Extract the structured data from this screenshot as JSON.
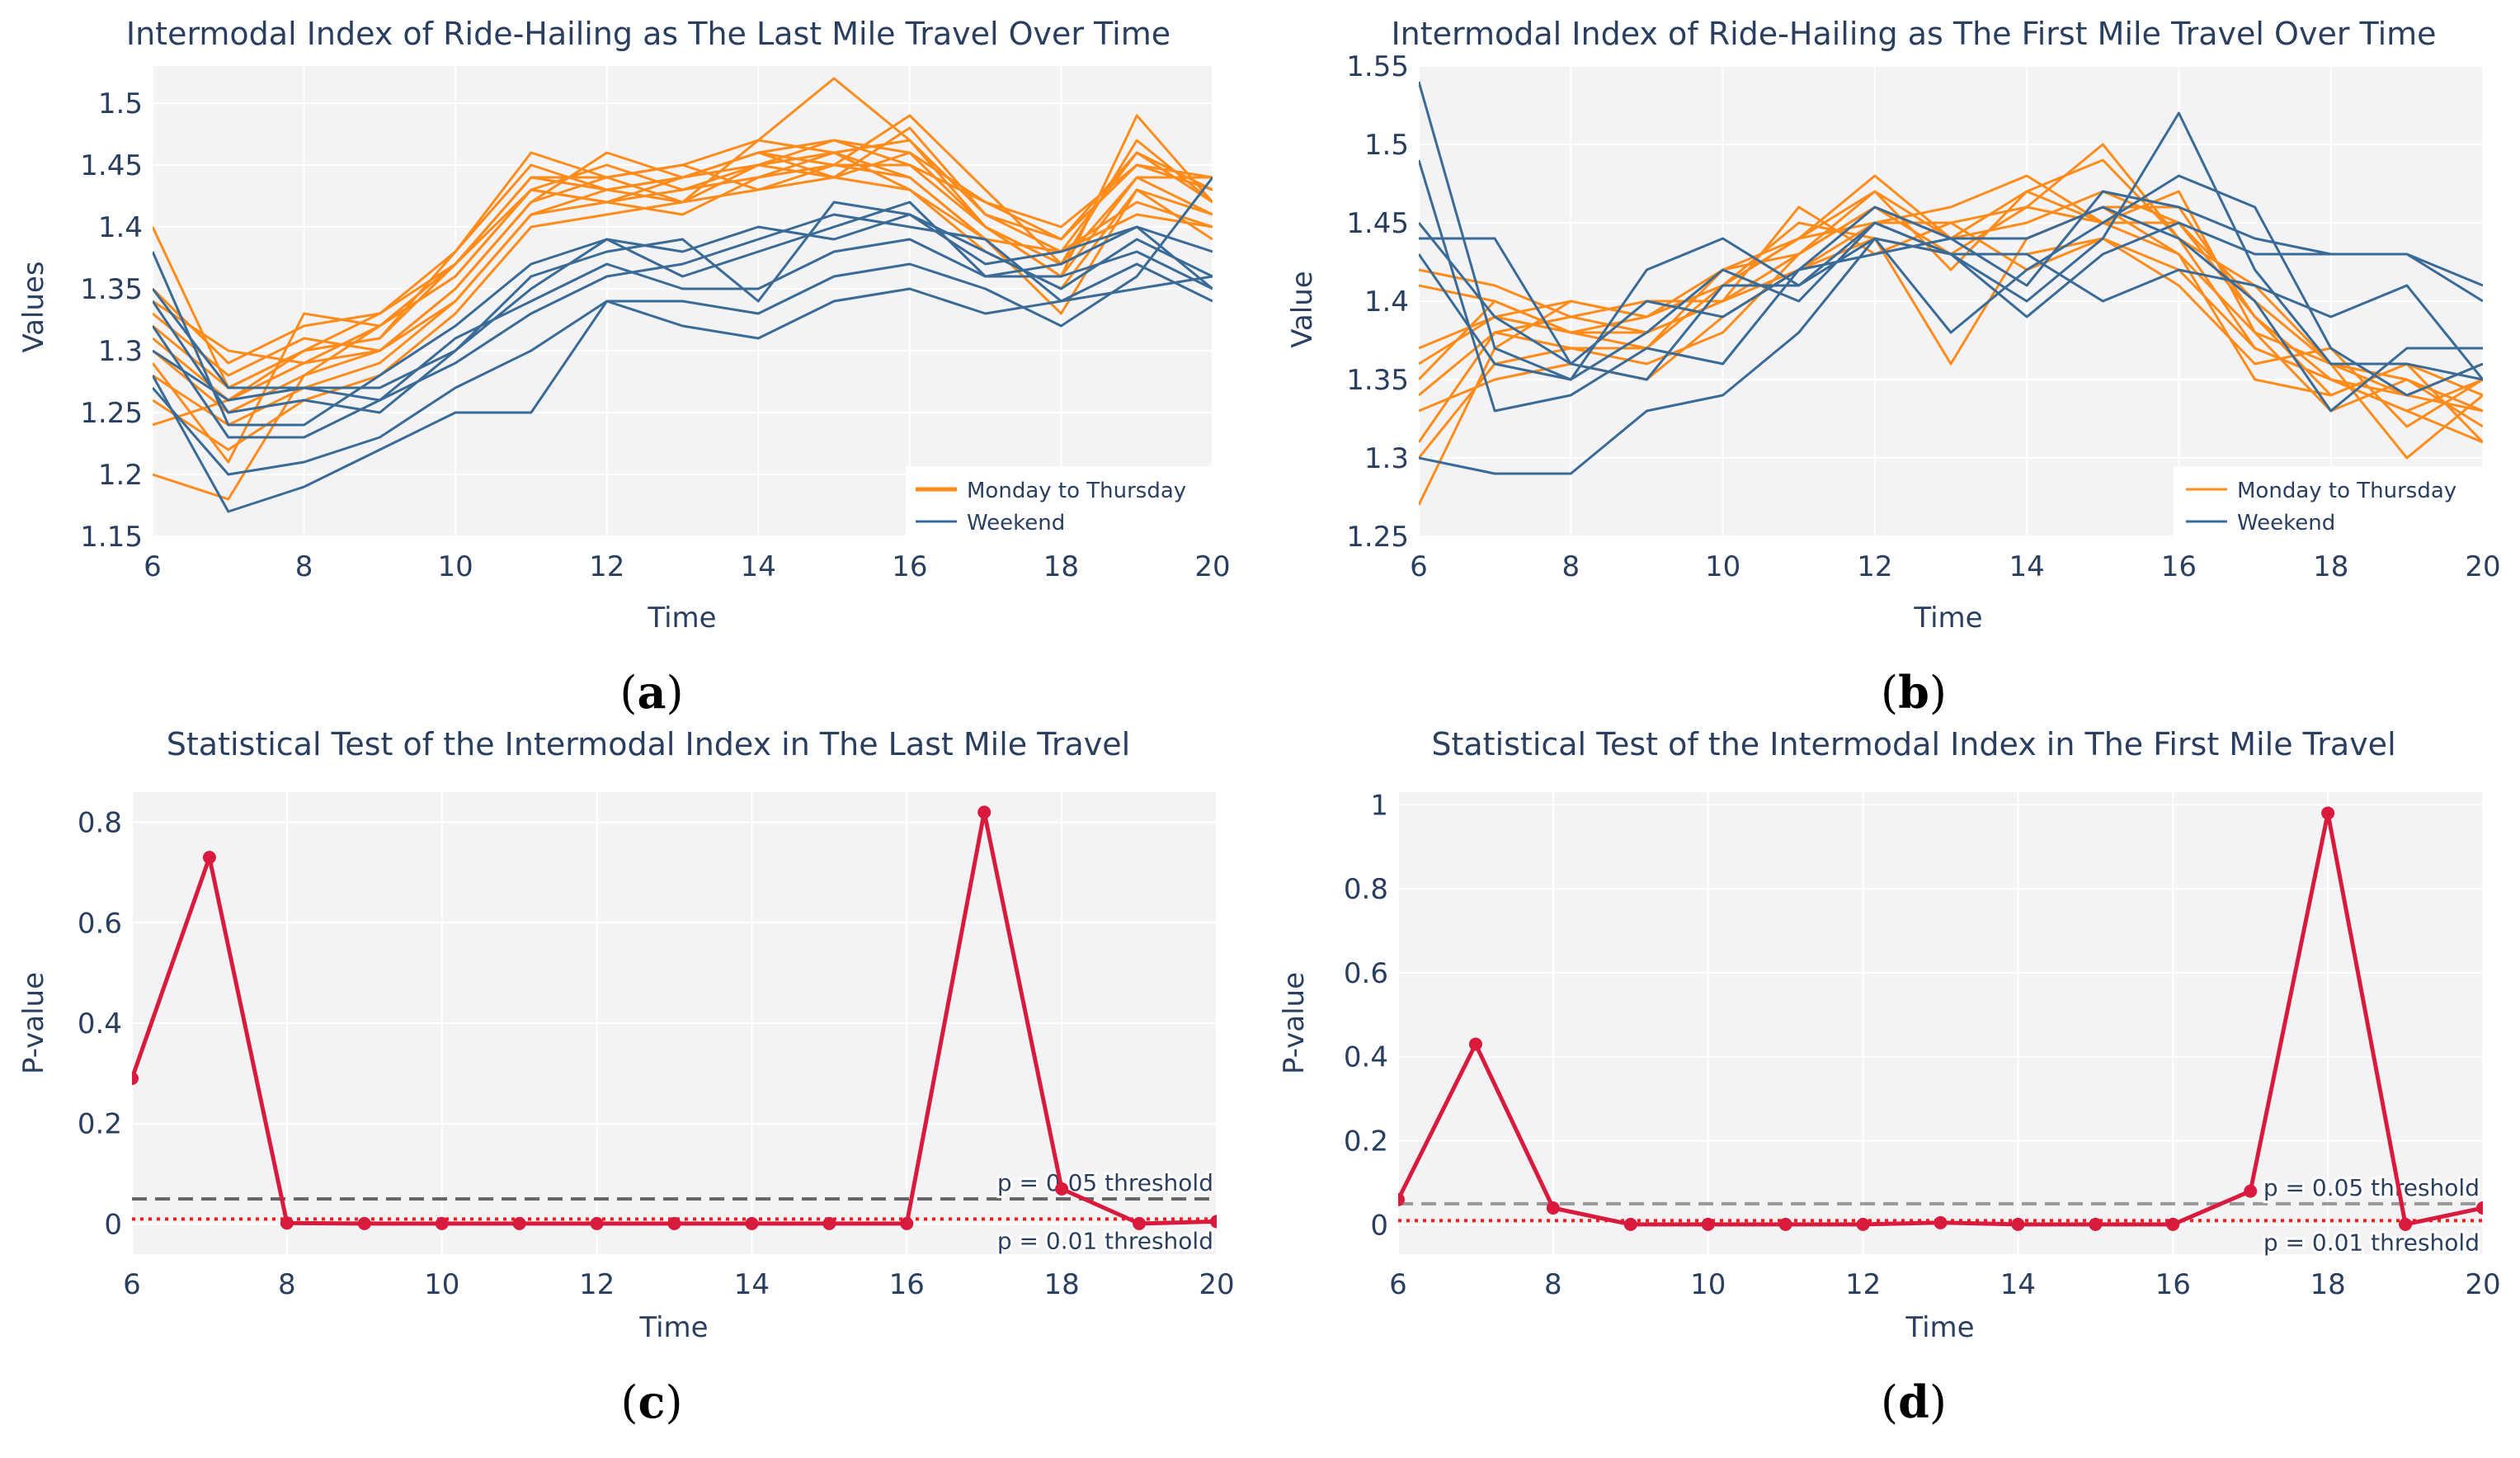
{
  "chart_data": [
    {
      "type": "line",
      "panel_label": "a",
      "title": "Intermodal Index of Ride-Hailing as The Last Mile Travel Over Time",
      "xlabel": "Time",
      "ylabel": "Values",
      "xlim": [
        6,
        20
      ],
      "ylim": [
        1.15,
        1.53
      ],
      "xticks": [
        6,
        8,
        10,
        12,
        14,
        16,
        18,
        20
      ],
      "yticks": [
        1.15,
        1.2,
        1.25,
        1.3,
        1.35,
        1.4,
        1.45,
        1.5
      ],
      "grid": true,
      "x": [
        6,
        7,
        8,
        9,
        10,
        11,
        12,
        13,
        14,
        15,
        16,
        17,
        18,
        19,
        20
      ],
      "legend": [
        {
          "name": "Monday to Thursday",
          "color": "#ff8c1a"
        },
        {
          "name": "Weekend",
          "color": "#3a6a96"
        }
      ],
      "legend_position": "bottom-right",
      "series": [
        {
          "name": "Monday to Thursday",
          "group": 0,
          "values": [
            1.3,
            1.25,
            1.28,
            1.3,
            1.35,
            1.42,
            1.44,
            1.42,
            1.45,
            1.44,
            1.46,
            1.4,
            1.37,
            1.44,
            1.41
          ]
        },
        {
          "name": "Monday to Thursday",
          "group": 0,
          "values": [
            1.32,
            1.27,
            1.3,
            1.31,
            1.37,
            1.44,
            1.43,
            1.44,
            1.46,
            1.47,
            1.45,
            1.42,
            1.39,
            1.46,
            1.43
          ]
        },
        {
          "name": "Monday to Thursday",
          "group": 0,
          "values": [
            1.28,
            1.24,
            1.27,
            1.29,
            1.34,
            1.41,
            1.42,
            1.43,
            1.44,
            1.45,
            1.44,
            1.39,
            1.38,
            1.42,
            1.4
          ]
        },
        {
          "name": "Monday to Thursday",
          "group": 0,
          "values": [
            1.35,
            1.29,
            1.32,
            1.33,
            1.38,
            1.46,
            1.44,
            1.45,
            1.47,
            1.52,
            1.47,
            1.4,
            1.36,
            1.49,
            1.42
          ]
        },
        {
          "name": "Monday to Thursday",
          "group": 0,
          "values": [
            1.26,
            1.22,
            1.26,
            1.28,
            1.33,
            1.4,
            1.41,
            1.42,
            1.43,
            1.44,
            1.48,
            1.41,
            1.39,
            1.45,
            1.44
          ]
        },
        {
          "name": "Monday to Thursday",
          "group": 0,
          "values": [
            1.31,
            1.26,
            1.29,
            1.32,
            1.36,
            1.43,
            1.45,
            1.43,
            1.45,
            1.46,
            1.43,
            1.38,
            1.35,
            1.43,
            1.41
          ]
        },
        {
          "name": "Monday to Thursday",
          "group": 0,
          "values": [
            1.33,
            1.28,
            1.31,
            1.3,
            1.35,
            1.42,
            1.46,
            1.44,
            1.46,
            1.45,
            1.49,
            1.43,
            1.37,
            1.47,
            1.42
          ]
        },
        {
          "name": "Monday to Thursday",
          "group": 0,
          "values": [
            1.29,
            1.21,
            1.33,
            1.32,
            1.36,
            1.43,
            1.42,
            1.41,
            1.44,
            1.46,
            1.44,
            1.39,
            1.38,
            1.41,
            1.4
          ]
        },
        {
          "name": "Monday to Thursday",
          "group": 0,
          "values": [
            1.4,
            1.27,
            1.3,
            1.31,
            1.38,
            1.45,
            1.43,
            1.44,
            1.45,
            1.47,
            1.46,
            1.42,
            1.4,
            1.45,
            1.43
          ]
        },
        {
          "name": "Monday to Thursday",
          "group": 0,
          "values": [
            1.24,
            1.26,
            1.3,
            1.33,
            1.37,
            1.44,
            1.44,
            1.45,
            1.43,
            1.45,
            1.45,
            1.4,
            1.36,
            1.44,
            1.44
          ]
        },
        {
          "name": "Monday to Thursday",
          "group": 0,
          "values": [
            1.34,
            1.3,
            1.29,
            1.3,
            1.34,
            1.41,
            1.43,
            1.42,
            1.47,
            1.46,
            1.47,
            1.41,
            1.38,
            1.46,
            1.42
          ]
        },
        {
          "name": "Monday to Thursday",
          "group": 0,
          "values": [
            1.2,
            1.18,
            1.28,
            1.32,
            1.37,
            1.43,
            1.42,
            1.44,
            1.46,
            1.44,
            1.43,
            1.39,
            1.33,
            1.43,
            1.39
          ]
        },
        {
          "name": "Weekend",
          "group": 1,
          "values": [
            1.38,
            1.24,
            1.24,
            1.28,
            1.32,
            1.37,
            1.39,
            1.38,
            1.4,
            1.39,
            1.41,
            1.37,
            1.38,
            1.4,
            1.38
          ]
        },
        {
          "name": "Weekend",
          "group": 1,
          "values": [
            1.35,
            1.27,
            1.27,
            1.27,
            1.3,
            1.36,
            1.38,
            1.39,
            1.34,
            1.42,
            1.41,
            1.38,
            1.35,
            1.39,
            1.36
          ]
        },
        {
          "name": "Weekend",
          "group": 1,
          "values": [
            1.28,
            1.17,
            1.19,
            1.22,
            1.25,
            1.25,
            1.34,
            1.32,
            1.31,
            1.34,
            1.35,
            1.33,
            1.34,
            1.35,
            1.36
          ]
        },
        {
          "name": "Weekend",
          "group": 1,
          "values": [
            1.3,
            1.26,
            1.27,
            1.26,
            1.31,
            1.34,
            1.37,
            1.35,
            1.35,
            1.38,
            1.39,
            1.36,
            1.37,
            1.4,
            1.35
          ]
        },
        {
          "name": "Weekend",
          "group": 1,
          "values": [
            1.32,
            1.23,
            1.23,
            1.26,
            1.29,
            1.33,
            1.36,
            1.37,
            1.39,
            1.41,
            1.4,
            1.39,
            1.34,
            1.37,
            1.34
          ]
        },
        {
          "name": "Weekend",
          "group": 1,
          "values": [
            1.27,
            1.2,
            1.21,
            1.23,
            1.27,
            1.3,
            1.34,
            1.34,
            1.33,
            1.36,
            1.37,
            1.35,
            1.32,
            1.36,
            1.44
          ]
        },
        {
          "name": "Weekend",
          "group": 1,
          "values": [
            1.34,
            1.25,
            1.26,
            1.25,
            1.3,
            1.35,
            1.39,
            1.36,
            1.38,
            1.4,
            1.42,
            1.36,
            1.36,
            1.38,
            1.35
          ]
        }
      ]
    },
    {
      "type": "line",
      "panel_label": "b",
      "title": "Intermodal Index of Ride-Hailing as The First Mile Travel Over Time",
      "xlabel": "Time",
      "ylabel": "Value",
      "xlim": [
        6,
        20
      ],
      "ylim": [
        1.25,
        1.55
      ],
      "xticks": [
        6,
        8,
        10,
        12,
        14,
        16,
        18,
        20
      ],
      "yticks": [
        1.25,
        1.3,
        1.35,
        1.4,
        1.45,
        1.5,
        1.55
      ],
      "grid": true,
      "x": [
        6,
        7,
        8,
        9,
        10,
        11,
        12,
        13,
        14,
        15,
        16,
        17,
        18,
        19,
        20
      ],
      "legend": [
        {
          "name": "Monday to Thursday",
          "color": "#ff8c1a"
        },
        {
          "name": "Weekend",
          "color": "#3a6a96"
        }
      ],
      "legend_position": "bottom-right",
      "series": [
        {
          "name": "Monday to Thursday",
          "group": 0,
          "values": [
            1.37,
            1.39,
            1.38,
            1.38,
            1.4,
            1.43,
            1.46,
            1.43,
            1.46,
            1.45,
            1.43,
            1.38,
            1.36,
            1.35,
            1.33
          ]
        },
        {
          "name": "Monday to Thursday",
          "group": 0,
          "values": [
            1.27,
            1.37,
            1.4,
            1.39,
            1.42,
            1.44,
            1.48,
            1.44,
            1.47,
            1.49,
            1.44,
            1.37,
            1.35,
            1.33,
            1.31
          ]
        },
        {
          "name": "Monday to Thursday",
          "group": 0,
          "values": [
            1.41,
            1.4,
            1.38,
            1.37,
            1.41,
            1.45,
            1.44,
            1.36,
            1.44,
            1.46,
            1.46,
            1.39,
            1.34,
            1.36,
            1.34
          ]
        },
        {
          "name": "Monday to Thursday",
          "group": 0,
          "values": [
            1.34,
            1.38,
            1.39,
            1.4,
            1.4,
            1.42,
            1.45,
            1.45,
            1.42,
            1.44,
            1.41,
            1.36,
            1.37,
            1.32,
            1.35
          ]
        },
        {
          "name": "Monday to Thursday",
          "group": 0,
          "values": [
            1.3,
            1.36,
            1.37,
            1.36,
            1.38,
            1.43,
            1.47,
            1.44,
            1.45,
            1.47,
            1.45,
            1.4,
            1.36,
            1.34,
            1.36
          ]
        },
        {
          "name": "Monday to Thursday",
          "group": 0,
          "values": [
            1.36,
            1.39,
            1.4,
            1.39,
            1.41,
            1.44,
            1.45,
            1.46,
            1.48,
            1.45,
            1.47,
            1.38,
            1.33,
            1.35,
            1.32
          ]
        },
        {
          "name": "Monday to Thursday",
          "group": 0,
          "values": [
            1.33,
            1.35,
            1.36,
            1.35,
            1.39,
            1.42,
            1.44,
            1.43,
            1.43,
            1.44,
            1.42,
            1.37,
            1.35,
            1.34,
            1.33
          ]
        },
        {
          "name": "Monday to Thursday",
          "group": 0,
          "values": [
            1.42,
            1.41,
            1.39,
            1.38,
            1.4,
            1.46,
            1.43,
            1.45,
            1.46,
            1.5,
            1.44,
            1.41,
            1.36,
            1.3,
            1.34
          ]
        },
        {
          "name": "Monday to Thursday",
          "group": 0,
          "values": [
            1.31,
            1.38,
            1.37,
            1.37,
            1.42,
            1.43,
            1.46,
            1.44,
            1.44,
            1.46,
            1.43,
            1.35,
            1.34,
            1.36,
            1.31
          ]
        },
        {
          "name": "Monday to Thursday",
          "group": 0,
          "values": [
            1.35,
            1.4,
            1.38,
            1.39,
            1.41,
            1.44,
            1.47,
            1.42,
            1.47,
            1.45,
            1.45,
            1.39,
            1.35,
            1.33,
            1.35
          ]
        },
        {
          "name": "Weekend",
          "group": 1,
          "values": [
            1.54,
            1.37,
            1.35,
            1.42,
            1.44,
            1.41,
            1.45,
            1.43,
            1.4,
            1.44,
            1.52,
            1.42,
            1.36,
            1.36,
            1.35
          ]
        },
        {
          "name": "Weekend",
          "group": 1,
          "values": [
            1.49,
            1.33,
            1.34,
            1.37,
            1.36,
            1.42,
            1.46,
            1.44,
            1.41,
            1.47,
            1.46,
            1.44,
            1.43,
            1.43,
            1.4
          ]
        },
        {
          "name": "Weekend",
          "group": 1,
          "values": [
            1.3,
            1.29,
            1.29,
            1.33,
            1.34,
            1.38,
            1.44,
            1.38,
            1.42,
            1.45,
            1.48,
            1.46,
            1.37,
            1.34,
            1.36
          ]
        },
        {
          "name": "Weekend",
          "group": 1,
          "values": [
            1.44,
            1.44,
            1.36,
            1.35,
            1.41,
            1.41,
            1.44,
            1.43,
            1.43,
            1.4,
            1.42,
            1.41,
            1.39,
            1.41,
            1.35
          ]
        },
        {
          "name": "Weekend",
          "group": 1,
          "values": [
            1.45,
            1.39,
            1.36,
            1.4,
            1.39,
            1.42,
            1.43,
            1.44,
            1.44,
            1.46,
            1.44,
            1.4,
            1.33,
            1.37,
            1.37
          ]
        },
        {
          "name": "Weekend",
          "group": 1,
          "values": [
            1.43,
            1.36,
            1.35,
            1.38,
            1.42,
            1.4,
            1.45,
            1.43,
            1.39,
            1.43,
            1.45,
            1.43,
            1.43,
            1.43,
            1.41
          ]
        }
      ]
    },
    {
      "type": "line",
      "panel_label": "c",
      "title": "Statistical Test of the Intermodal Index in The Last Mile Travel",
      "xlabel": "Time",
      "ylabel": "P-value",
      "xlim": [
        6,
        20
      ],
      "ylim": [
        -0.06,
        0.86
      ],
      "xticks": [
        6,
        8,
        10,
        12,
        14,
        16,
        18,
        20
      ],
      "yticks": [
        0,
        0.2,
        0.4,
        0.6,
        0.8
      ],
      "grid": true,
      "x": [
        6,
        7,
        8,
        9,
        10,
        11,
        12,
        13,
        14,
        15,
        16,
        17,
        18,
        19,
        20
      ],
      "series": [
        {
          "name": "P-value",
          "color": "#d81b3c",
          "markers": true,
          "values": [
            0.29,
            0.73,
            0.002,
            0.001,
            0.001,
            0.001,
            0.001,
            0.001,
            0.001,
            0.001,
            0.001,
            0.82,
            0.07,
            0.001,
            0.005
          ]
        }
      ],
      "thresholds": [
        {
          "value": 0.05,
          "label": "p = 0.05 threshold",
          "color": "#666666",
          "style": "dashed"
        },
        {
          "value": 0.01,
          "label": "p = 0.01 threshold",
          "color": "#ff1a1a",
          "style": "dotted"
        }
      ]
    },
    {
      "type": "line",
      "panel_label": "d",
      "title": "Statistical Test of the Intermodal Index in The First Mile Travel",
      "xlabel": "Time",
      "ylabel": "P-value",
      "xlim": [
        6,
        20
      ],
      "ylim": [
        -0.07,
        1.03
      ],
      "xticks": [
        6,
        8,
        10,
        12,
        14,
        16,
        18,
        20
      ],
      "yticks": [
        0,
        0.2,
        0.4,
        0.6,
        0.8,
        1
      ],
      "grid": true,
      "x": [
        6,
        7,
        8,
        9,
        10,
        11,
        12,
        13,
        14,
        15,
        16,
        17,
        18,
        19,
        20
      ],
      "series": [
        {
          "name": "P-value",
          "color": "#d81b3c",
          "markers": true,
          "values": [
            0.06,
            0.43,
            0.04,
            0.001,
            0.001,
            0.001,
            0.001,
            0.005,
            0.001,
            0.001,
            0.001,
            0.08,
            0.98,
            0.001,
            0.04
          ]
        }
      ],
      "thresholds": [
        {
          "value": 0.05,
          "label": "p = 0.05 threshold",
          "color": "#999999",
          "style": "dashed"
        },
        {
          "value": 0.01,
          "label": "p = 0.01 threshold",
          "color": "#ff1a1a",
          "style": "dotted"
        }
      ]
    }
  ]
}
